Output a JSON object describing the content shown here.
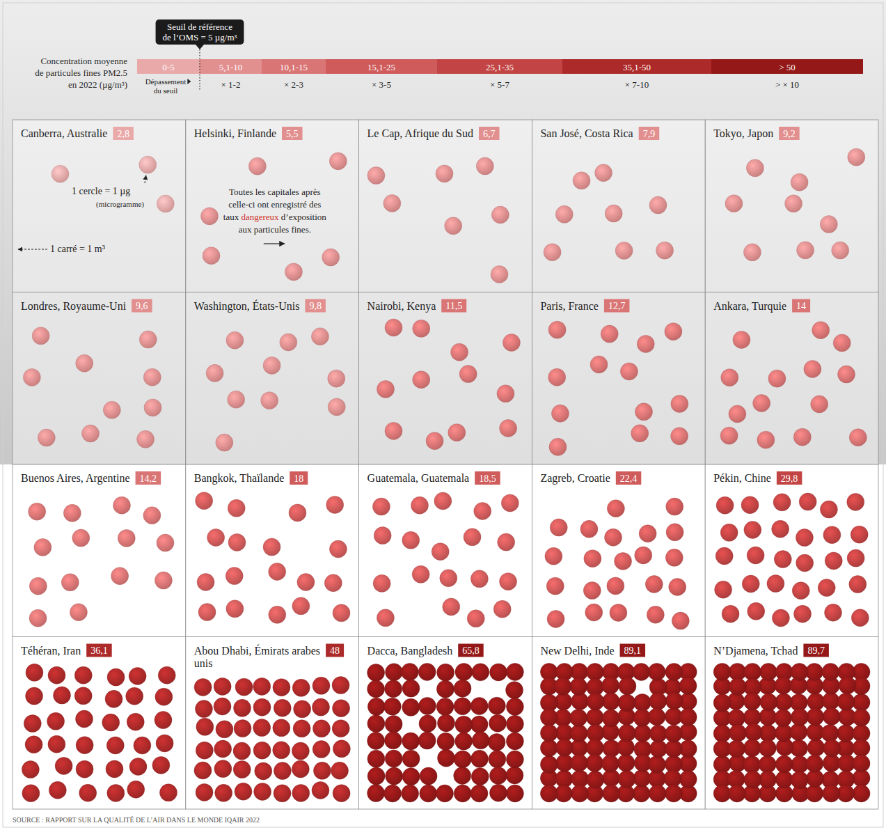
{
  "chart_data": {
    "type": "pictogram",
    "legend_title": [
      "Concentration moyenne",
      "de particules fines PM2.5",
      "en 2022 (µg/m³)"
    ],
    "threshold": {
      "value": 5,
      "label": [
        "Seuil de référence",
        "de l’OMS = 5 µg/m³"
      ]
    },
    "color_scale": [
      {
        "from": 0,
        "to": 5,
        "label": "0-5",
        "factor": "Dépassement du seuil",
        "color": "#eaa9a9"
      },
      {
        "from": 5.1,
        "to": 10,
        "label": "5,1-10",
        "factor": "× 1-2",
        "color": "#e28f8f"
      },
      {
        "from": 10.1,
        "to": 15,
        "label": "10,1-15",
        "factor": "× 2-3",
        "color": "#d97575"
      },
      {
        "from": 15.1,
        "to": 25,
        "label": "15,1-25",
        "factor": "× 3-5",
        "color": "#cf5b5b"
      },
      {
        "from": 25.1,
        "to": 35,
        "label": "25,1-35",
        "factor": "× 5-7",
        "color": "#c24444"
      },
      {
        "from": 35.1,
        "to": 50,
        "label": "35,1-50",
        "factor": "× 7-10",
        "color": "#ad2a2a"
      },
      {
        "from": 50,
        "to": null,
        "label": "> 50",
        "factor": "> × 10",
        "color": "#941818"
      }
    ],
    "categories": [
      "Canberra, Australie",
      "Helsinki, Finlande",
      "Le Cap, Afrique du Sud",
      "San José, Costa Rica",
      "Tokyo, Japon",
      "Londres, Royaume-Uni",
      "Washington, États-Unis",
      "Nairobi, Kenya",
      "Paris, France",
      "Ankara, Turquie",
      "Buenos Aires, Argentine",
      "Bangkok, Thaïlande",
      "Guatemala, Guatemala",
      "Zagreb, Croatie",
      "Pékin, Chine",
      "Téhéran, Iran",
      "Abou Dhabi, Émirats arabes unis",
      "Dacca, Bangladesh",
      "New Delhi, Inde",
      "N’Djamena, Tchad"
    ],
    "values": [
      2.8,
      5.5,
      6.7,
      7.9,
      9.2,
      9.6,
      9.8,
      11.5,
      12.7,
      14,
      14.2,
      18,
      18.5,
      22.4,
      29.8,
      36.1,
      48,
      65.8,
      89.1,
      89.7
    ],
    "value_labels": [
      "2,8",
      "5,5",
      "6,7",
      "7,9",
      "9,2",
      "9,6",
      "9,8",
      "11,5",
      "12,7",
      "14",
      "14,2",
      "18",
      "18,5",
      "22,4",
      "29,8",
      "36,1",
      "48",
      "65,8",
      "89,1",
      "89,7"
    ],
    "annotations": [
      {
        "category": "Canberra, Australie",
        "lines": [
          "1 cercle = 1 µg",
          "(microgramme)"
        ]
      },
      {
        "category": "Canberra, Australie",
        "lines": [
          "1 carré = 1 m³"
        ]
      },
      {
        "category": "Helsinki, Finlande",
        "lines": [
          "Toutes les capitales après",
          "celle-ci ont enregistré des",
          "taux dangereux d’exposition",
          "aux particules fines."
        ],
        "emphasis": "dangereux"
      }
    ],
    "source": "SOURCE : RAPPORT SUR LA QUALITÉ DE L’AIR DANS LE MONDE IQAIR 2022"
  }
}
